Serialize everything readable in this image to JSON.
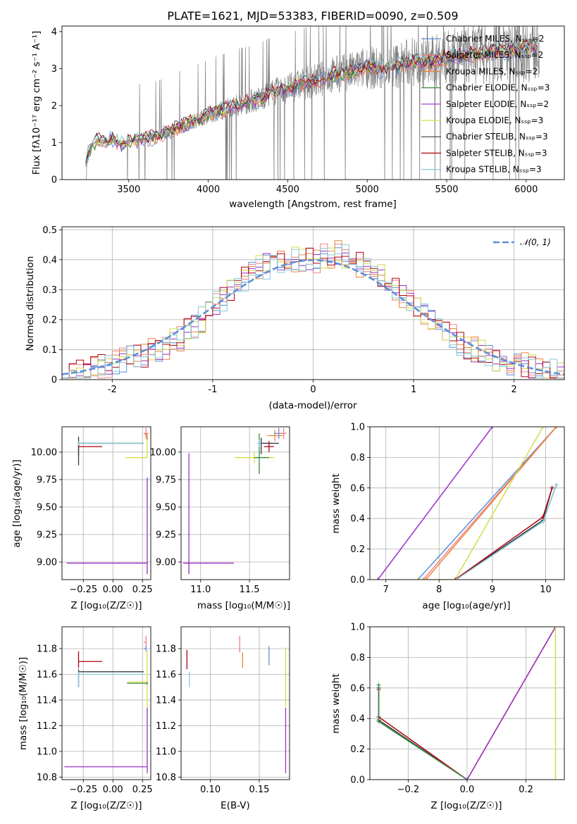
{
  "chart_data": [
    {
      "id": "spectrum",
      "type": "line",
      "title": "PLATE=1621, MJD=53383, FIBERID=0090, z=0.509",
      "xlabel": "wavelength [Angstrom, rest frame]",
      "ylabel": "Flux [fλ 10^-17 erg cm^-2 s^-1 A^-1]",
      "xlim": [
        3080,
        6240
      ],
      "ylim": [
        0,
        4.15
      ],
      "xticks": [
        3500,
        4000,
        4500,
        5000,
        5500,
        6000
      ],
      "yticks": [
        0,
        1,
        2,
        3,
        4
      ],
      "grid": false,
      "legend_position": "top-right",
      "series": [
        {
          "name": "Chabrier MILES, N_SSP=2",
          "color": "#5f8fd8"
        },
        {
          "name": "Salpeter MILES, N_SSP=2",
          "color": "#f08080"
        },
        {
          "name": "Kroupa MILES, N_SSP=2",
          "color": "#e8853a"
        },
        {
          "name": "Chabrier ELODIE, N_SSP=3",
          "color": "#3a8a3a"
        },
        {
          "name": "Salpeter ELODIE, N_SSP=2",
          "color": "#9b30c8"
        },
        {
          "name": "Kroupa ELODIE, N_SSP=3",
          "color": "#d4dc46"
        },
        {
          "name": "Chabrier STELIB, N_SSP=3",
          "color": "#303c44"
        },
        {
          "name": "Salpeter STELIB, N_SSP=3",
          "color": "#b00010"
        },
        {
          "name": "Kroupa STELIB, N_SSP=3",
          "color": "#86c9d8"
        }
      ],
      "observed_color": "#808080",
      "model_continuum": {
        "x": [
          3230,
          3260,
          3300,
          3350,
          3400,
          3450,
          3500,
          3600,
          3700,
          3800,
          3900,
          4000,
          4100,
          4200,
          4300,
          4400,
          4500,
          4600,
          4700,
          4800,
          4900,
          5000,
          5100,
          5200,
          5300,
          5400,
          5500,
          5600,
          5700,
          5800,
          5900,
          6000,
          6080
        ],
        "y": [
          0.6,
          0.85,
          1.05,
          1.0,
          1.1,
          0.95,
          1.05,
          1.1,
          1.2,
          1.4,
          1.55,
          1.75,
          1.9,
          2.05,
          2.15,
          2.35,
          2.45,
          2.6,
          2.7,
          2.85,
          2.9,
          3.05,
          2.95,
          3.1,
          3.2,
          3.15,
          3.3,
          3.35,
          3.4,
          3.45,
          3.5,
          3.55,
          3.6
        ]
      }
    },
    {
      "id": "residuals",
      "type": "line",
      "xlabel": "(data-model)/error",
      "ylabel": "Normed distribution",
      "xlim": [
        -2.5,
        2.5
      ],
      "ylim": [
        0,
        0.51
      ],
      "xticks": [
        -2,
        -1,
        0,
        1,
        2
      ],
      "yticks": [
        0.0,
        0.1,
        0.2,
        0.3,
        0.4,
        0.5
      ],
      "grid": true,
      "legend_position": "top-right",
      "legend_label": "𝒩(0, 1)",
      "bin_width": 0.1,
      "histogram_base": [
        0.02,
        0.02,
        0.03,
        0.035,
        0.04,
        0.04,
        0.05,
        0.06,
        0.065,
        0.07,
        0.08,
        0.085,
        0.095,
        0.1,
        0.11,
        0.13,
        0.14,
        0.16,
        0.18,
        0.2,
        0.22,
        0.25,
        0.27,
        0.3,
        0.32,
        0.34,
        0.36,
        0.37,
        0.38,
        0.385,
        0.4,
        0.39,
        0.4,
        0.4,
        0.41,
        0.4,
        0.41,
        0.4,
        0.42,
        0.41,
        0.39,
        0.38,
        0.36,
        0.35,
        0.34,
        0.32,
        0.3,
        0.28,
        0.26,
        0.24,
        0.22,
        0.2,
        0.18,
        0.16,
        0.14,
        0.12,
        0.11,
        0.1,
        0.09,
        0.08,
        0.07,
        0.065,
        0.06,
        0.05,
        0.045,
        0.04,
        0.035,
        0.03,
        0.025,
        0.02
      ]
    },
    {
      "id": "age-vs-Z",
      "type": "scatter",
      "xlabel": "Z [log10(Z/Z⊙)]",
      "ylabel": "age  [log10(age/yr)]",
      "xlim": [
        -0.43,
        0.32
      ],
      "ylim": [
        8.84,
        10.23
      ],
      "xticks": [
        -0.25,
        0.0,
        0.25
      ],
      "xtick_labels": [
        "−0.25",
        "0.00",
        "0.25"
      ],
      "yticks": [
        9.0,
        9.25,
        9.5,
        9.75,
        10.0
      ],
      "ytick_labels": [
        "9.00",
        "9.25",
        "9.50",
        "9.75",
        "10.00"
      ],
      "grid": true,
      "points": [
        {
          "series": 4,
          "x": 0.29,
          "y": 8.99,
          "xerr": [
            0.68,
            0.0
          ],
          "yerr": [
            0.1,
            0.78
          ]
        },
        {
          "series": 7,
          "x": -0.29,
          "y": 10.05,
          "xerr": [
            0.0,
            0.2
          ],
          "yerr": [
            0.08,
            0.05
          ]
        },
        {
          "series": 6,
          "x": -0.29,
          "y": 10.08,
          "xerr": [
            0.0,
            0.55
          ],
          "yerr": [
            0.2,
            0.06
          ]
        },
        {
          "series": 8,
          "x": -0.29,
          "y": 10.08,
          "xerr": [
            0.0,
            0.55
          ],
          "yerr": [
            0.02,
            0.02
          ]
        },
        {
          "series": 5,
          "x": 0.29,
          "y": 9.95,
          "xerr": [
            0.18,
            0.0
          ],
          "yerr": [
            0.0,
            0.22
          ]
        },
        {
          "series": 1,
          "x": 0.28,
          "y": 10.17,
          "xerr": [
            0.02,
            0.02
          ],
          "yerr": [
            0.05,
            0.05
          ]
        },
        {
          "series": 2,
          "x": 0.29,
          "y": 10.16,
          "xerr": [
            0.02,
            0.0
          ],
          "yerr": [
            0.05,
            0.0
          ]
        }
      ]
    },
    {
      "id": "age-vs-mass",
      "type": "scatter",
      "xlabel": "mass [log10(M/M⊙)]",
      "ylabel": "",
      "xlim": [
        10.8,
        11.91
      ],
      "ylim": [
        8.84,
        10.23
      ],
      "xticks": [
        11.0,
        11.5
      ],
      "xtick_labels": [
        "11.0",
        "11.5"
      ],
      "yticks": [
        9.0,
        9.25,
        9.5,
        9.75,
        10.0
      ],
      "ytick_labels": [
        "9.00",
        "9.25",
        "9.50",
        "9.75",
        "10.00"
      ],
      "grid": true,
      "points": [
        {
          "series": 4,
          "x": 10.88,
          "y": 8.99,
          "xerr": [
            0.06,
            0.46
          ],
          "yerr": [
            0.1,
            1.0
          ]
        },
        {
          "series": 5,
          "x": 11.55,
          "y": 9.95,
          "xerr": [
            0.2,
            0.2
          ],
          "yerr": [
            0.05,
            0.05
          ]
        },
        {
          "series": 3,
          "x": 11.6,
          "y": 9.95,
          "xerr": [
            0.05,
            0.1
          ],
          "yerr": [
            0.15,
            0.22
          ]
        },
        {
          "series": 6,
          "x": 11.62,
          "y": 10.08,
          "xerr": [
            0.02,
            0.18
          ],
          "yerr": [
            0.1,
            0.05
          ]
        },
        {
          "series": 7,
          "x": 11.7,
          "y": 10.05,
          "xerr": [
            0.05,
            0.05
          ],
          "yerr": [
            0.05,
            0.05
          ]
        },
        {
          "series": 2,
          "x": 11.76,
          "y": 10.15,
          "xerr": [
            0.08,
            0.08
          ],
          "yerr": [
            0.05,
            0.05
          ]
        },
        {
          "series": 0,
          "x": 11.8,
          "y": 10.17,
          "xerr": [
            0.05,
            0.05
          ],
          "yerr": [
            0.05,
            0.05
          ]
        },
        {
          "series": 1,
          "x": 11.85,
          "y": 10.17,
          "xerr": [
            0.05,
            0.03
          ],
          "yerr": [
            0.05,
            0.05
          ]
        },
        {
          "series": 8,
          "x": 11.6,
          "y": 10.08,
          "xerr": [
            0.02,
            0.02
          ],
          "yerr": [
            0.03,
            0.03
          ]
        }
      ]
    },
    {
      "id": "massweight-vs-age",
      "type": "line",
      "xlabel": "age  [log10(age/yr)]",
      "ylabel": "mass weight",
      "xlim": [
        6.7,
        10.35
      ],
      "ylim": [
        0,
        1.0
      ],
      "xticks": [
        7,
        8,
        9,
        10
      ],
      "yticks": [
        0.0,
        0.2,
        0.4,
        0.6,
        0.8,
        1.0
      ],
      "ytick_labels": [
        "0.0",
        "0.2",
        "0.4",
        "0.6",
        "0.8",
        "1.0"
      ],
      "grid": true,
      "series": [
        {
          "series": 4,
          "x": [
            6.85,
            9.0
          ],
          "y": [
            0.0,
            1.0
          ]
        },
        {
          "series": 0,
          "x": [
            7.6,
            10.2
          ],
          "y": [
            0.0,
            1.0
          ]
        },
        {
          "series": 1,
          "x": [
            7.7,
            10.2
          ],
          "y": [
            0.0,
            1.0
          ]
        },
        {
          "series": 2,
          "x": [
            7.75,
            10.2
          ],
          "y": [
            0.0,
            1.0
          ]
        },
        {
          "series": 5,
          "x": [
            7.6,
            8.3,
            9.95
          ],
          "y": [
            0.0,
            0.0,
            1.0
          ]
        },
        {
          "series": 3,
          "x": [
            8.3,
            9.95,
            10.2
          ],
          "y": [
            0.0,
            0.38,
            0.62
          ]
        },
        {
          "series": 6,
          "x": [
            8.3,
            9.95,
            10.12
          ],
          "y": [
            0.0,
            0.39,
            0.6
          ]
        },
        {
          "series": 7,
          "x": [
            8.3,
            9.95,
            10.12
          ],
          "y": [
            0.0,
            0.41,
            0.6
          ]
        },
        {
          "series": 8,
          "x": [
            8.32,
            9.95,
            10.2
          ],
          "y": [
            0.0,
            0.38,
            0.62
          ]
        }
      ]
    },
    {
      "id": "mass-vs-Z",
      "type": "scatter",
      "xlabel": "Z [log10(Z/Z⊙)]",
      "ylabel": "mass [log10(M/M⊙)]",
      "xlim": [
        -0.43,
        0.32
      ],
      "ylim": [
        10.78,
        11.97
      ],
      "xticks": [
        -0.25,
        0.0,
        0.25
      ],
      "xtick_labels": [
        "−0.25",
        "0.00",
        "0.25"
      ],
      "yticks": [
        10.8,
        11.0,
        11.2,
        11.4,
        11.6,
        11.8
      ],
      "ytick_labels": [
        "10.8",
        "11.0",
        "11.2",
        "11.4",
        "11.6",
        "11.8"
      ],
      "grid": true,
      "points": [
        {
          "series": 4,
          "x": 0.29,
          "y": 10.88,
          "xerr": [
            0.7,
            0.0
          ],
          "yerr": [
            0.05,
            0.46
          ]
        },
        {
          "series": 7,
          "x": -0.29,
          "y": 11.7,
          "xerr": [
            0.0,
            0.2
          ],
          "yerr": [
            0.05,
            0.08
          ]
        },
        {
          "series": 6,
          "x": -0.29,
          "y": 11.62,
          "xerr": [
            0.0,
            0.55
          ],
          "yerr": [
            0.12,
            0.02
          ]
        },
        {
          "series": 8,
          "x": -0.29,
          "y": 11.6,
          "xerr": [
            0.0,
            0.55
          ],
          "yerr": [
            0.1,
            0.02
          ]
        },
        {
          "series": 5,
          "x": 0.29,
          "y": 11.54,
          "xerr": [
            0.17,
            0.0
          ],
          "yerr": [
            0.2,
            0.25
          ]
        },
        {
          "series": 3,
          "x": 0.29,
          "y": 11.53,
          "xerr": [
            0.17,
            0.0
          ],
          "yerr": [
            0.01,
            0.01
          ]
        },
        {
          "series": 1,
          "x": 0.28,
          "y": 11.85,
          "xerr": [
            0.02,
            0.0
          ],
          "yerr": [
            0.05,
            0.05
          ]
        },
        {
          "series": 0,
          "x": 0.28,
          "y": 11.8,
          "xerr": [
            0.02,
            0.0
          ],
          "yerr": [
            0.02,
            0.02
          ]
        }
      ]
    },
    {
      "id": "mass-vs-ebv",
      "type": "scatter",
      "xlabel": "E(B-V)",
      "ylabel": "",
      "xlim": [
        0.07,
        0.181
      ],
      "ylim": [
        10.78,
        11.97
      ],
      "xticks": [
        0.1,
        0.15
      ],
      "xtick_labels": [
        "0.10",
        "0.15"
      ],
      "yticks": [
        10.8,
        11.0,
        11.2,
        11.4,
        11.6,
        11.8
      ],
      "ytick_labels": [
        "10.8",
        "11.0",
        "11.2",
        "11.4",
        "11.6",
        "11.8"
      ],
      "grid": true,
      "points": [
        {
          "series": 7,
          "x": 0.076,
          "y": 11.7,
          "yerr": [
            0.06,
            0.09
          ]
        },
        {
          "series": 8,
          "x": 0.0785,
          "y": 11.6,
          "yerr": [
            0.1,
            0.02
          ]
        },
        {
          "series": 1,
          "x": 0.13,
          "y": 11.83,
          "yerr": [
            0.06,
            0.07
          ]
        },
        {
          "series": 2,
          "x": 0.133,
          "y": 11.71,
          "yerr": [
            0.06,
            0.06
          ]
        },
        {
          "series": 0,
          "x": 0.16,
          "y": 11.75,
          "yerr": [
            0.08,
            0.07
          ]
        },
        {
          "series": 5,
          "x": 0.177,
          "y": 11.55,
          "yerr": [
            0.2,
            0.26
          ]
        },
        {
          "series": 4,
          "x": 0.177,
          "y": 11.08,
          "yerr": [
            0.25,
            0.26
          ]
        }
      ]
    },
    {
      "id": "massweight-vs-Z",
      "type": "line",
      "xlabel": "Z [log10(Z/Z⊙)]",
      "ylabel": "mass weight",
      "xlim": [
        -0.33,
        0.33
      ],
      "ylim": [
        0,
        1.0
      ],
      "xticks": [
        -0.2,
        0.0,
        0.2
      ],
      "xtick_labels": [
        "−0.2",
        "0.0",
        "0.2"
      ],
      "yticks": [
        0.0,
        0.2,
        0.4,
        0.6,
        0.8,
        1.0
      ],
      "ytick_labels": [
        "0.0",
        "0.2",
        "0.4",
        "0.6",
        "0.8",
        "1.0"
      ],
      "grid": true,
      "series": [
        {
          "series": 6,
          "x": [
            -0.3,
            -0.3,
            0.0
          ],
          "y": [
            0.6,
            0.39,
            0.0
          ]
        },
        {
          "series": 7,
          "x": [
            -0.3,
            -0.3,
            0.0
          ],
          "y": [
            0.59,
            0.41,
            0.0
          ]
        },
        {
          "series": 8,
          "x": [
            -0.3,
            -0.3,
            0.0
          ],
          "y": [
            0.62,
            0.38,
            0.0
          ]
        },
        {
          "series": 3,
          "x": [
            -0.3,
            -0.3,
            0.0
          ],
          "y": [
            0.62,
            0.38,
            0.0
          ]
        },
        {
          "series": 0,
          "x": [
            0.0,
            0.3
          ],
          "y": [
            0.0,
            1.0
          ]
        },
        {
          "series": 1,
          "x": [
            0.0,
            0.3
          ],
          "y": [
            0.0,
            1.0
          ]
        },
        {
          "series": 2,
          "x": [
            0.0,
            0.3
          ],
          "y": [
            0.0,
            1.0
          ]
        },
        {
          "series": 4,
          "x": [
            0.0,
            0.3
          ],
          "y": [
            0.0,
            1.0
          ]
        },
        {
          "series": 5,
          "x": [
            0.3,
            0.3
          ],
          "y": [
            0.0,
            1.0
          ]
        }
      ]
    }
  ]
}
